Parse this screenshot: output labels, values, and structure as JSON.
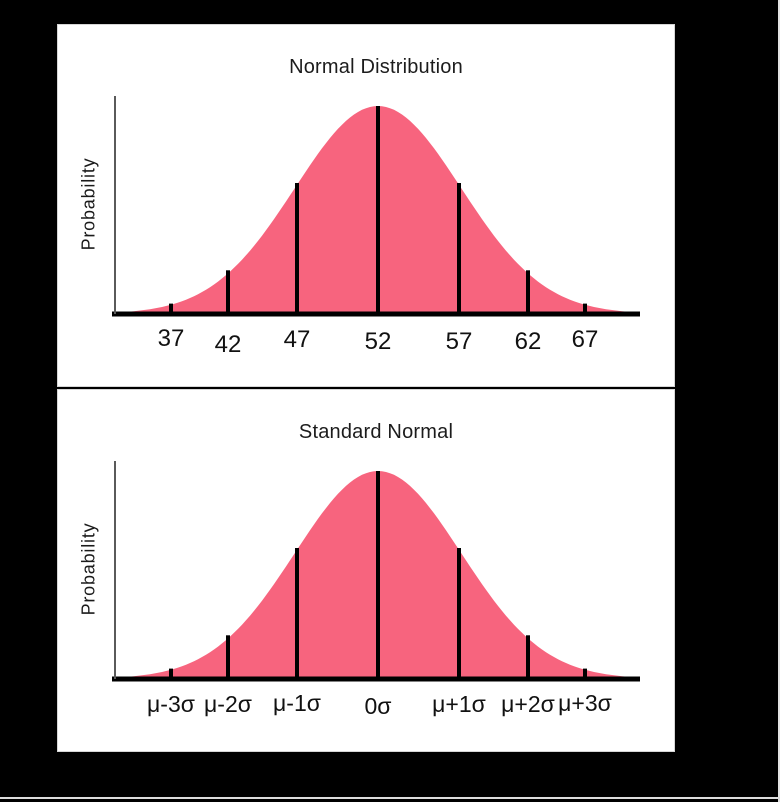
{
  "page": {
    "background": "#000000",
    "panel_background": "#ffffff",
    "panel_border": "#d6d6d6"
  },
  "colors": {
    "curve_fill": "#F7647E",
    "marker_line": "#000000",
    "x_axis": "#000000",
    "y_axis": "#5a5a5a",
    "tick_text": "#111111",
    "title_text": "#1c1c1c"
  },
  "charts": [
    {
      "title": "Normal Distribution",
      "ylabel": "Probability",
      "xticklabels": [
        "37",
        "42",
        "47",
        "52",
        "57",
        "62",
        "67"
      ]
    },
    {
      "title": "Standard Normal",
      "ylabel": "Probability",
      "xticklabels": [
        "μ-3σ",
        "μ-2σ",
        "μ-1σ",
        "0σ",
        "μ+1σ",
        "μ+2σ",
        "μ+3σ"
      ]
    }
  ],
  "chart_data": [
    {
      "type": "area",
      "title": "Normal Distribution",
      "xlabel": "",
      "ylabel": "Probability",
      "curve": "gaussian",
      "mean": 52,
      "std": 5,
      "x_tick_values": [
        37,
        42,
        47,
        52,
        57,
        62,
        67
      ],
      "x_tick_labels": [
        "37",
        "42",
        "47",
        "52",
        "57",
        "62",
        "67"
      ],
      "sigma_offsets": [
        -3,
        -2,
        -1,
        0,
        1,
        2,
        3
      ],
      "marker_rel_heights": [
        0.05,
        0.21,
        0.63,
        1.0,
        0.63,
        0.21,
        0.05
      ],
      "fill_color": "#F7647E",
      "grid": false,
      "legend": false,
      "y_tick_labels": []
    },
    {
      "type": "area",
      "title": "Standard Normal",
      "xlabel": "",
      "ylabel": "Probability",
      "curve": "gaussian",
      "mean": 0,
      "std": 1,
      "x_tick_values": [
        -3,
        -2,
        -1,
        0,
        1,
        2,
        3
      ],
      "x_tick_labels": [
        "μ-3σ",
        "μ-2σ",
        "μ-1σ",
        "0σ",
        "μ+1σ",
        "μ+2σ",
        "μ+3σ"
      ],
      "sigma_offsets": [
        -3,
        -2,
        -1,
        0,
        1,
        2,
        3
      ],
      "marker_rel_heights": [
        0.05,
        0.21,
        0.63,
        1.0,
        0.63,
        0.21,
        0.05
      ],
      "fill_color": "#F7647E",
      "grid": false,
      "legend": false,
      "y_tick_labels": []
    }
  ]
}
